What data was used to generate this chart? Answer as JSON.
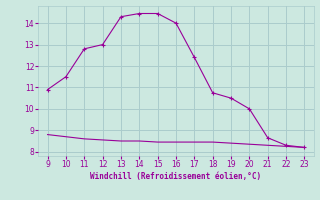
{
  "x_main": [
    9,
    10,
    11,
    12,
    13,
    14,
    15,
    16,
    17,
    18,
    19,
    20,
    21,
    22,
    23
  ],
  "y_main": [
    10.9,
    11.5,
    12.8,
    13.0,
    14.3,
    14.45,
    14.45,
    14.0,
    12.4,
    10.75,
    10.5,
    10.0,
    8.65,
    8.3,
    8.2
  ],
  "x_flat": [
    9,
    10,
    11,
    12,
    13,
    14,
    15,
    16,
    17,
    18,
    19,
    20,
    21,
    22,
    23
  ],
  "y_flat": [
    8.8,
    8.7,
    8.6,
    8.55,
    8.5,
    8.5,
    8.45,
    8.45,
    8.45,
    8.45,
    8.4,
    8.35,
    8.3,
    8.25,
    8.2
  ],
  "line_color": "#990099",
  "bg_color": "#cce8e0",
  "grid_color": "#aacccc",
  "xlabel": "Windchill (Refroidissement éolien,°C)",
  "xlim": [
    8.5,
    23.5
  ],
  "ylim": [
    7.8,
    14.8
  ],
  "xticks": [
    9,
    10,
    11,
    12,
    13,
    14,
    15,
    16,
    17,
    18,
    19,
    20,
    21,
    22,
    23
  ],
  "yticks": [
    8,
    9,
    10,
    11,
    12,
    13,
    14
  ],
  "tick_color": "#990099",
  "xlabel_color": "#990099",
  "marker": "+"
}
